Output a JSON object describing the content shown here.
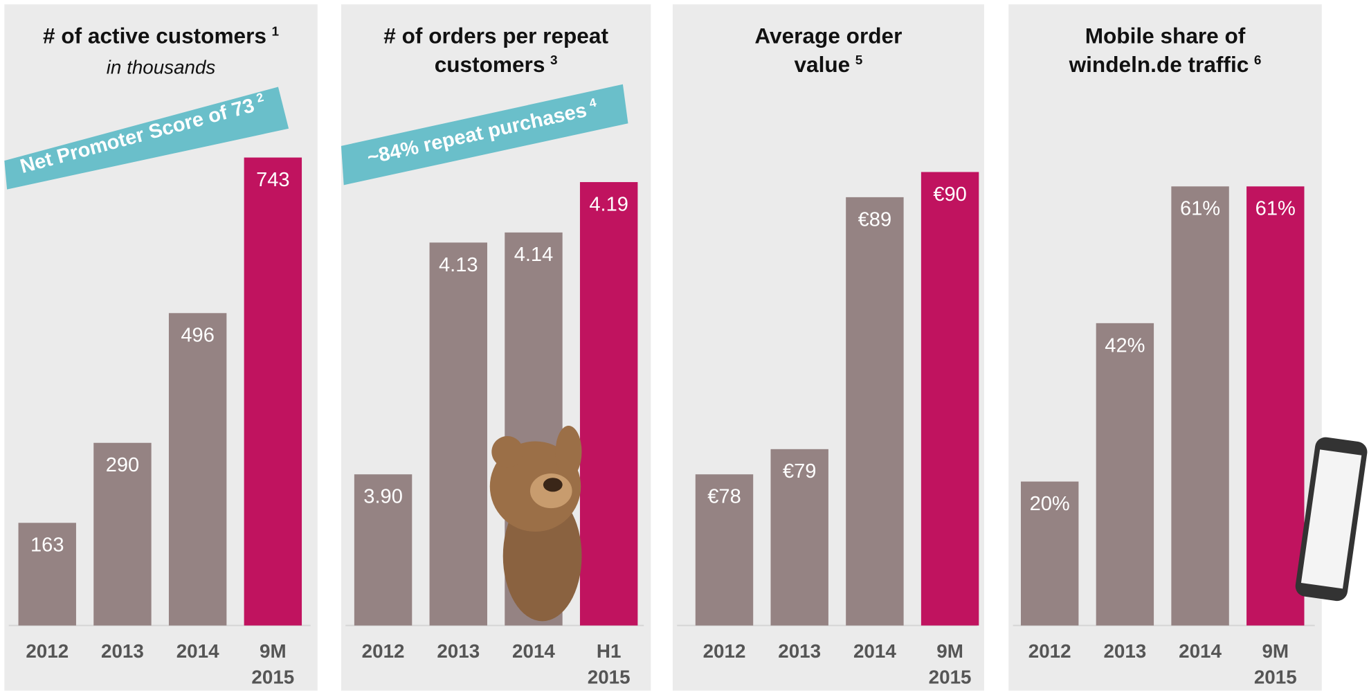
{
  "chart_data": [
    {
      "type": "bar",
      "title": [
        "# of active customers"
      ],
      "title_footnote": "1",
      "subtitle": "in thousands",
      "banner": "Net Promoter Score of 73",
      "banner_footnote": "2",
      "categories": [
        "2012",
        "2013",
        "2014",
        "9M 2015"
      ],
      "values": [
        163,
        290,
        496,
        743
      ],
      "colors": [
        "#958383",
        "#958383",
        "#958383",
        "#c0135f"
      ],
      "ylim": [
        0,
        800
      ]
    },
    {
      "type": "bar",
      "title": [
        "# of orders per repeat",
        "customers"
      ],
      "title_footnote": "3",
      "banner": "~84% repeat purchases",
      "banner_footnote": "4",
      "categories": [
        "2012",
        "2013",
        "2014",
        "H1 2015"
      ],
      "values": [
        3.9,
        4.13,
        4.14,
        4.19
      ],
      "value_labels": [
        "3.90",
        "4.13",
        "4.14",
        "4.19"
      ],
      "colors": [
        "#958383",
        "#958383",
        "#958383",
        "#c0135f"
      ],
      "ylim": [
        3.75,
        4.25
      ]
    },
    {
      "type": "bar",
      "title": [
        "Average order",
        "value"
      ],
      "title_footnote": "5",
      "categories": [
        "2012",
        "2013",
        "2014",
        "9M 2015"
      ],
      "values": [
        78,
        79,
        89,
        90
      ],
      "value_labels": [
        "€78",
        "€79",
        "€89",
        "€90"
      ],
      "colors": [
        "#958383",
        "#958383",
        "#958383",
        "#c0135f"
      ],
      "ylim": [
        72,
        92
      ]
    },
    {
      "type": "bar",
      "title": [
        "Mobile share of",
        "windeln.de traffic"
      ],
      "title_footnote": "6",
      "categories": [
        "2012",
        "2013",
        "2014",
        "9M 2015"
      ],
      "values": [
        20,
        42,
        61,
        61
      ],
      "value_labels": [
        "20%",
        "42%",
        "61%",
        "61%"
      ],
      "colors": [
        "#958383",
        "#958383",
        "#958383",
        "#c0135f"
      ],
      "ylim": [
        0,
        70
      ]
    }
  ]
}
